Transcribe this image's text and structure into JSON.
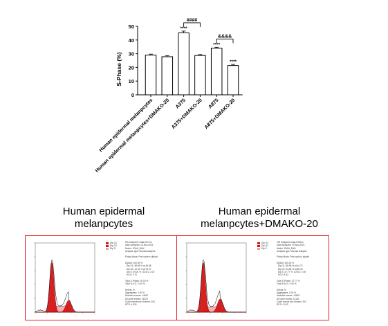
{
  "chart_data": [
    {
      "type": "bar",
      "ylabel": "S-Phase  (%)",
      "ylim": [
        0,
        50
      ],
      "yticks": [
        0,
        10,
        20,
        30,
        40,
        50
      ],
      "categories": [
        "Human epidermal melanpcytes",
        "Human epidermal melanpcytes+DMAKO-20",
        "A375",
        "A375+DMAKO-20",
        "A875",
        "A875+DMAKO-20"
      ],
      "values": [
        29.0,
        27.8,
        45.2,
        28.7,
        34.1,
        21.4
      ],
      "errors": [
        0.7,
        0.8,
        1.3,
        0.7,
        0.6,
        0.8
      ],
      "significance": [
        "",
        "",
        "****",
        "",
        "****",
        "****"
      ],
      "comparisons": [
        {
          "from": 2,
          "to": 3,
          "label": "####"
        },
        {
          "from": 4,
          "to": 5,
          "label": "&&&&"
        }
      ]
    },
    {
      "type": "area",
      "title": "Human epidermal melanpcytes"
    },
    {
      "type": "area",
      "title": "Human epidermal melanpcytes+DMAKO-20"
    }
  ],
  "panels": [
    {
      "title_line1": "Human epidermal",
      "title_line2": "melanpcytes",
      "stats": [
        "File analyzed: Data.007.fcs",
        "Date analyzed: 19-Nov-2021",
        "Model: 1DAN_DAN",
        "Analysis type: Manual analysis",
        "",
        "Ploidy Mode: First cycle is diploid",
        "",
        "Diploid: 100.00 %",
        "  Dip G1: 58.88 % at 45.68",
        "  Dip G2: 12.09 % at 91.37",
        "  Dip S: 29.03 %  G2/G1: 2.00",
        "  %CV: 4.70",
        "",
        "Total S-Phase: 29.03 %",
        "Total B.A.D.: 0.00 %",
        "",
        "Debris: %",
        "Aggregates: 0.00 %",
        "Modeled events: 14697",
        "All cycle events: 14325",
        "Cycle events per channel: 300",
        "RCS: 4.334"
      ]
    },
    {
      "title_line1": "Human epidermal",
      "title_line2": "melanpcytes+DMAKO-20",
      "stats": [
        "File analyzed: Data.008.fcs",
        "Date analyzed: 19-Nov-2021",
        "Model: 1DAN_DAN",
        "Analysis type: Manual analysis",
        "",
        "Ploidy Mode: First cycle is diploid",
        "",
        "Diploid: 100.00 %",
        "  Dip G1: 58.58 % at 44.72",
        "  Dip G2: 13.65 % at 89.44",
        "  Dip S: 27.77 %  G2/G1: 2.00",
        "  %CV: 4.62",
        "",
        "Total S-Phase: 27.77 %",
        "Total B.A.D.: 0.00 %",
        "",
        "Debris: %",
        "Aggregates: 0.00 %",
        "Modeled events: 14629",
        "All cycle events: 14182",
        "Cycle events per channel: 302",
        "RCS: 4.103"
      ]
    }
  ],
  "legend": [
    "Dip G1",
    "Dip G2",
    "Dip S"
  ],
  "colors": {
    "bar_stroke": "#000000",
    "frame": "#e02020",
    "peak": "#d41515",
    "s_phase": "#f0a0a0"
  }
}
